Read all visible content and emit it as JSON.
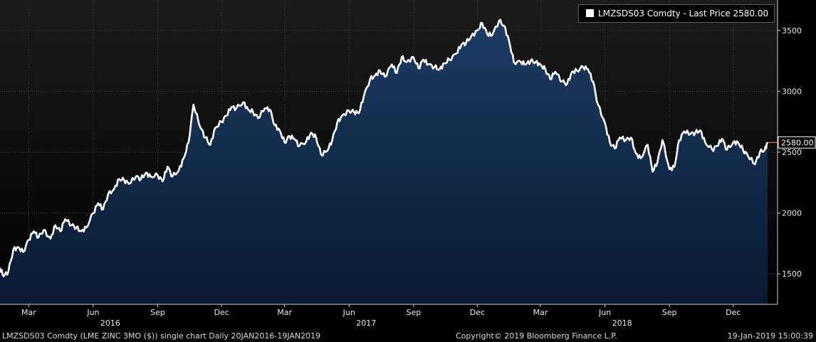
{
  "chart_data": {
    "type": "area",
    "title": "",
    "xlabel": "",
    "ylabel": "",
    "legend": {
      "label": "LMZSDS03 Comdty - Last Price 2580.00",
      "position": "top-right"
    },
    "last_price_label": "2580.00",
    "ylim": [
      1250,
      3750
    ],
    "y_ticks": [
      1500,
      2000,
      2500,
      3000,
      3500
    ],
    "y_tick_labels": [
      "1500",
      "2000",
      "2500",
      "3000",
      "3500"
    ],
    "xlim": [
      "2016-01-20",
      "2019-01-19"
    ],
    "month_ticks": [
      {
        "date": "2016-03-01",
        "label": "Mar"
      },
      {
        "date": "2016-06-01",
        "label": "Jun"
      },
      {
        "date": "2016-09-01",
        "label": "Sep"
      },
      {
        "date": "2016-12-01",
        "label": "Dec"
      },
      {
        "date": "2017-03-01",
        "label": "Mar"
      },
      {
        "date": "2017-06-01",
        "label": "Jun"
      },
      {
        "date": "2017-09-01",
        "label": "Sep"
      },
      {
        "date": "2017-12-01",
        "label": "Dec"
      },
      {
        "date": "2018-03-01",
        "label": "Mar"
      },
      {
        "date": "2018-06-01",
        "label": "Jun"
      },
      {
        "date": "2018-09-01",
        "label": "Sep"
      },
      {
        "date": "2018-12-01",
        "label": "Dec"
      }
    ],
    "year_ticks": [
      {
        "date": "2016-06-01",
        "label": "2016"
      },
      {
        "date": "2017-06-01",
        "label": "2017"
      },
      {
        "date": "2018-06-01",
        "label": "2018"
      }
    ],
    "grid": true,
    "series": [
      {
        "line_color": "#ffffff",
        "fill_color_top": "#1d3c64",
        "fill_color_bottom": "#081a30",
        "x": [
          "2016-01-20",
          "2016-01-25",
          "2016-02-01",
          "2016-02-08",
          "2016-02-15",
          "2016-02-22",
          "2016-03-01",
          "2016-03-08",
          "2016-03-15",
          "2016-03-22",
          "2016-04-01",
          "2016-04-08",
          "2016-04-15",
          "2016-04-22",
          "2016-05-01",
          "2016-05-08",
          "2016-05-15",
          "2016-05-22",
          "2016-06-01",
          "2016-06-08",
          "2016-06-15",
          "2016-06-22",
          "2016-07-01",
          "2016-07-08",
          "2016-07-15",
          "2016-07-22",
          "2016-08-01",
          "2016-08-08",
          "2016-08-15",
          "2016-08-22",
          "2016-09-01",
          "2016-09-08",
          "2016-09-15",
          "2016-09-22",
          "2016-10-01",
          "2016-10-08",
          "2016-10-15",
          "2016-10-22",
          "2016-11-01",
          "2016-11-08",
          "2016-11-15",
          "2016-11-22",
          "2016-12-01",
          "2016-12-08",
          "2016-12-15",
          "2016-12-22",
          "2017-01-01",
          "2017-01-08",
          "2017-01-15",
          "2017-01-22",
          "2017-02-01",
          "2017-02-08",
          "2017-02-15",
          "2017-02-22",
          "2017-03-01",
          "2017-03-08",
          "2017-03-15",
          "2017-03-22",
          "2017-04-01",
          "2017-04-08",
          "2017-04-15",
          "2017-04-22",
          "2017-05-01",
          "2017-05-08",
          "2017-05-15",
          "2017-05-22",
          "2017-06-01",
          "2017-06-08",
          "2017-06-15",
          "2017-06-22",
          "2017-07-01",
          "2017-07-08",
          "2017-07-15",
          "2017-07-22",
          "2017-08-01",
          "2017-08-08",
          "2017-08-15",
          "2017-08-22",
          "2017-09-01",
          "2017-09-08",
          "2017-09-15",
          "2017-09-22",
          "2017-10-01",
          "2017-10-08",
          "2017-10-15",
          "2017-10-22",
          "2017-11-01",
          "2017-11-08",
          "2017-11-15",
          "2017-11-22",
          "2017-12-01",
          "2017-12-08",
          "2017-12-15",
          "2017-12-22",
          "2018-01-01",
          "2018-01-08",
          "2018-01-15",
          "2018-01-22",
          "2018-02-01",
          "2018-02-08",
          "2018-02-15",
          "2018-02-22",
          "2018-03-01",
          "2018-03-08",
          "2018-03-15",
          "2018-03-22",
          "2018-04-01",
          "2018-04-08",
          "2018-04-15",
          "2018-04-22",
          "2018-05-01",
          "2018-05-08",
          "2018-05-15",
          "2018-05-22",
          "2018-06-01",
          "2018-06-08",
          "2018-06-15",
          "2018-06-22",
          "2018-07-01",
          "2018-07-08",
          "2018-07-15",
          "2018-07-22",
          "2018-08-01",
          "2018-08-08",
          "2018-08-15",
          "2018-08-22",
          "2018-09-01",
          "2018-09-08",
          "2018-09-15",
          "2018-09-22",
          "2018-10-01",
          "2018-10-08",
          "2018-10-15",
          "2018-10-22",
          "2018-11-01",
          "2018-11-08",
          "2018-11-15",
          "2018-11-22",
          "2018-12-01",
          "2018-12-08",
          "2018-12-15",
          "2018-12-22",
          "2019-01-01",
          "2019-01-08",
          "2019-01-15",
          "2019-01-19"
        ],
        "values": [
          1550,
          1480,
          1520,
          1700,
          1720,
          1680,
          1780,
          1850,
          1800,
          1860,
          1790,
          1900,
          1850,
          1950,
          1900,
          1880,
          1850,
          1880,
          2000,
          2080,
          2030,
          2150,
          2200,
          2280,
          2270,
          2240,
          2300,
          2280,
          2330,
          2300,
          2310,
          2260,
          2380,
          2300,
          2350,
          2450,
          2580,
          2890,
          2700,
          2620,
          2560,
          2700,
          2750,
          2800,
          2870,
          2860,
          2910,
          2850,
          2830,
          2780,
          2860,
          2850,
          2720,
          2680,
          2580,
          2630,
          2610,
          2550,
          2590,
          2660,
          2620,
          2480,
          2510,
          2600,
          2740,
          2800,
          2840,
          2830,
          2820,
          2960,
          3100,
          3130,
          3170,
          3120,
          3220,
          3150,
          3280,
          3240,
          3280,
          3190,
          3260,
          3220,
          3200,
          3180,
          3230,
          3260,
          3310,
          3380,
          3400,
          3450,
          3500,
          3560,
          3470,
          3460,
          3580,
          3540,
          3420,
          3240,
          3240,
          3220,
          3250,
          3240,
          3220,
          3180,
          3100,
          3160,
          3080,
          3060,
          3160,
          3170,
          3200,
          3180,
          3080,
          2890,
          2740,
          2580,
          2530,
          2620,
          2600,
          2620,
          2490,
          2450,
          2560,
          2340,
          2420,
          2600,
          2360,
          2380,
          2600,
          2670,
          2650,
          2660,
          2680,
          2580,
          2520,
          2550,
          2610,
          2520,
          2580,
          2580,
          2520,
          2470,
          2400,
          2500,
          2520,
          2580
        ]
      }
    ]
  },
  "footer": {
    "left": "LMZSDS03 Comdty (LME ZINC    3MO ($)) single chart  Daily 20JAN2016-19JAN2019",
    "center": "Copyright© 2019 Bloomberg Finance L.P.",
    "right": "19-Jan-2019 15:00:39"
  },
  "colors": {
    "background": "#000000",
    "plot_top": "#1a1a1a",
    "plot_bottom": "#000000",
    "grid": "#3c3c3c",
    "axis_text": "#e6e6e6",
    "last_price_marker": "#ff9900"
  }
}
